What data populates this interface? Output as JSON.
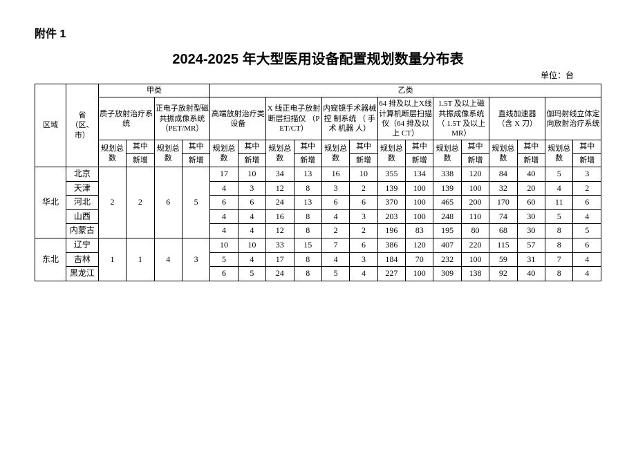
{
  "annex_label": "附件 1",
  "title": "2024-2025 年大型医用设备配置规划数量分布表",
  "unit_label": "单位：台",
  "header": {
    "region": "区域",
    "province": "省（区、 市）",
    "cat_a": "甲类",
    "cat_b": "乙类",
    "cols": {
      "c1": "质子放射治疗系统",
      "c2": "正电子放射型磁共振成像系统 （PET/MR）",
      "c3": "高端放射治疗类设备",
      "c4": "X 线正电子放射断层扫描仪 （PET/CT）",
      "c5": "内窥镜手术器械控 制系统 （ 手 术 机器 人）",
      "c6": "64 排及以上X线计算机断层扫描仪（64 排及以上 CT）",
      "c7": "1.5T 及以上磁共振成像系统 （ 1.5T 及以上 MR）",
      "c8": "直线加速器 （含 X 刀）",
      "c9": "伽玛射线立体定向放射治疗系统"
    },
    "plan_total": "规划总数",
    "of_which": "其中",
    "added": "新增"
  },
  "regions": [
    {
      "name": "华北",
      "merged_a": {
        "c1_total": "2",
        "c1_add": "2",
        "c2_total": "6",
        "c2_add": "5"
      },
      "rows": [
        {
          "prov": "北京",
          "v": [
            "17",
            "10",
            "34",
            "13",
            "16",
            "10",
            "355",
            "134",
            "338",
            "120",
            "84",
            "40",
            "5",
            "3"
          ]
        },
        {
          "prov": "天津",
          "v": [
            "4",
            "3",
            "12",
            "8",
            "3",
            "2",
            "139",
            "100",
            "139",
            "100",
            "32",
            "20",
            "4",
            "2"
          ]
        },
        {
          "prov": "河北",
          "v": [
            "6",
            "6",
            "24",
            "13",
            "6",
            "6",
            "370",
            "100",
            "465",
            "200",
            "170",
            "60",
            "11",
            "6"
          ]
        },
        {
          "prov": "山西",
          "v": [
            "4",
            "4",
            "16",
            "8",
            "4",
            "3",
            "203",
            "100",
            "248",
            "110",
            "74",
            "30",
            "5",
            "4"
          ]
        },
        {
          "prov": "内蒙古",
          "v": [
            "4",
            "4",
            "12",
            "8",
            "2",
            "2",
            "196",
            "83",
            "195",
            "80",
            "68",
            "30",
            "8",
            "5"
          ]
        }
      ]
    },
    {
      "name": "东北",
      "merged_a": {
        "c1_total": "1",
        "c1_add": "1",
        "c2_total": "4",
        "c2_add": "3"
      },
      "rows": [
        {
          "prov": "辽宁",
          "v": [
            "10",
            "10",
            "33",
            "15",
            "7",
            "6",
            "386",
            "120",
            "407",
            "220",
            "115",
            "57",
            "8",
            "6"
          ]
        },
        {
          "prov": "吉林",
          "v": [
            "5",
            "4",
            "17",
            "8",
            "4",
            "3",
            "184",
            "70",
            "232",
            "100",
            "59",
            "31",
            "7",
            "4"
          ]
        },
        {
          "prov": "黑龙江",
          "v": [
            "6",
            "5",
            "24",
            "8",
            "5",
            "4",
            "227",
            "100",
            "309",
            "138",
            "92",
            "40",
            "8",
            "4"
          ]
        }
      ]
    }
  ]
}
